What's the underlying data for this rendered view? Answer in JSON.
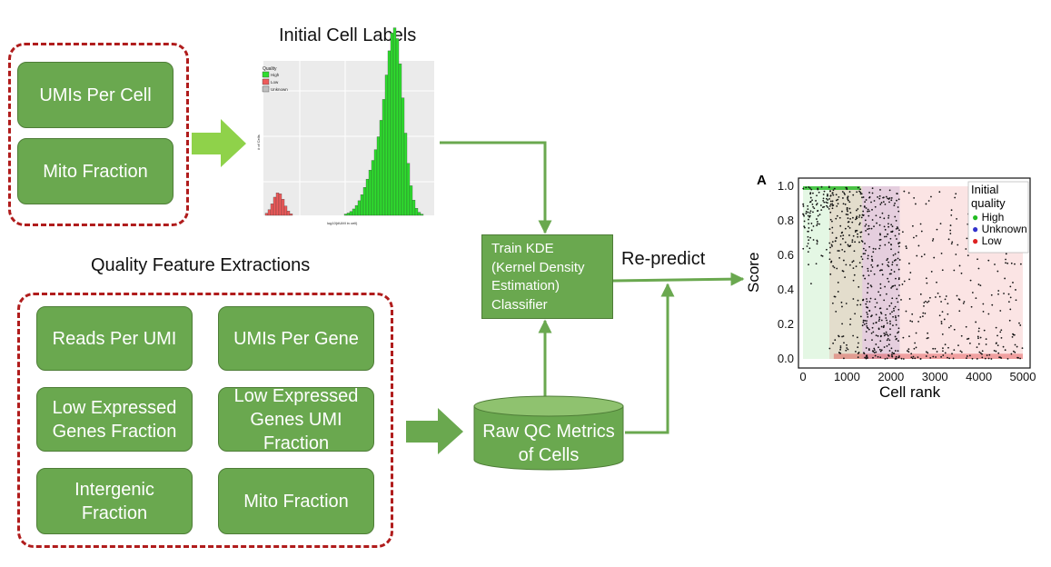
{
  "top_panel": {
    "items": [
      "UMIs Per Cell",
      "Mito Fraction"
    ]
  },
  "histogram": {
    "title": "Initial Cell Labels",
    "legend_title": "Quality",
    "legend_items": [
      "High",
      "Low",
      "Unknown"
    ],
    "xlabel": "log10(#UMI in cell)",
    "ylabel": "# of Cells"
  },
  "features": {
    "title": "Quality Feature Extractions",
    "items": [
      "Reads Per UMI",
      "UMIs Per Gene",
      "Low Expressed Genes Fraction",
      "Low Expressed Genes UMI Fraction",
      "Intergenic Fraction",
      "Mito Fraction"
    ]
  },
  "raw_qc": "Raw QC Metrics of Cells",
  "kde": [
    "Train KDE",
    "(Kernel Density",
    "Estimation)",
    "Classifier"
  ],
  "repredict": "Re-predict",
  "chart_data": {
    "type": "scatter",
    "panel_label": "A",
    "xlabel": "Cell rank",
    "ylabel": "Score",
    "xlim": [
      0,
      5000
    ],
    "ylim": [
      0,
      1
    ],
    "xticks": [
      "0",
      "1000",
      "2000",
      "3000",
      "4000",
      "5000"
    ],
    "yticks": [
      "0.0",
      "0.2",
      "0.4",
      "0.6",
      "0.8",
      "1.0"
    ],
    "legend_title": "Initial quality",
    "legend_placement": "top-right",
    "series": [
      {
        "name": "High",
        "color": "#22bb22",
        "x_range": [
          0,
          1350
        ]
      },
      {
        "name": "Unknown",
        "color": "#3333cc",
        "x_range": [
          1350,
          2200
        ]
      },
      {
        "name": "Low",
        "color": "#dd2222",
        "x_range": [
          600,
          5000
        ]
      }
    ]
  },
  "colors": {
    "box": "#6aa84f",
    "dashed": "#b01c1c",
    "arrow": "#6aa84f"
  }
}
